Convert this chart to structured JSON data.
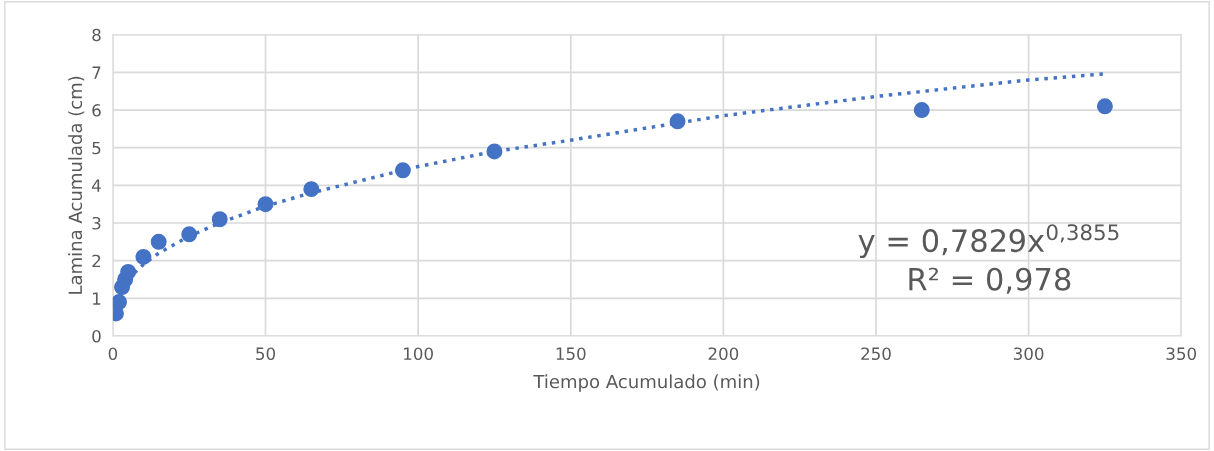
{
  "chart_data": {
    "type": "scatter",
    "xlabel": "Tiempo Acumulado (min)",
    "ylabel": "Lamina Acumulada (cm)",
    "xlim": [
      0,
      350
    ],
    "xticks": [
      0,
      50,
      100,
      150,
      200,
      250,
      300,
      350
    ],
    "ylim": [
      0,
      8
    ],
    "yticks": [
      0,
      1,
      2,
      3,
      4,
      5,
      6,
      7,
      8
    ],
    "grid": true,
    "series": [
      {
        "marker": "circle",
        "color": "#4472c4",
        "x": [
          1,
          2,
          3,
          4,
          5,
          10,
          15,
          25,
          35,
          50,
          65,
          95,
          125,
          185,
          265,
          325
        ],
        "values": [
          0.6,
          0.9,
          1.3,
          1.5,
          1.7,
          2.1,
          2.5,
          2.7,
          3.1,
          3.5,
          3.9,
          4.4,
          4.9,
          5.7,
          6.0,
          6.1
        ]
      },
      {
        "type": "line",
        "color": "#4472c4",
        "line_style": "dotted",
        "x": [
          5,
          8,
          10,
          15,
          25,
          35,
          50,
          65,
          100,
          125,
          150,
          200,
          250,
          300,
          325
        ],
        "values": [
          1.5,
          1.75,
          1.9,
          2.2,
          2.65,
          3.0,
          3.45,
          3.8,
          4.5,
          4.9,
          5.2,
          5.85,
          6.36,
          6.8,
          6.96
        ]
      }
    ],
    "annotations": [
      "y = 0,7829x$^{0,3855}$",
      "R² = 0,978"
    ]
  }
}
